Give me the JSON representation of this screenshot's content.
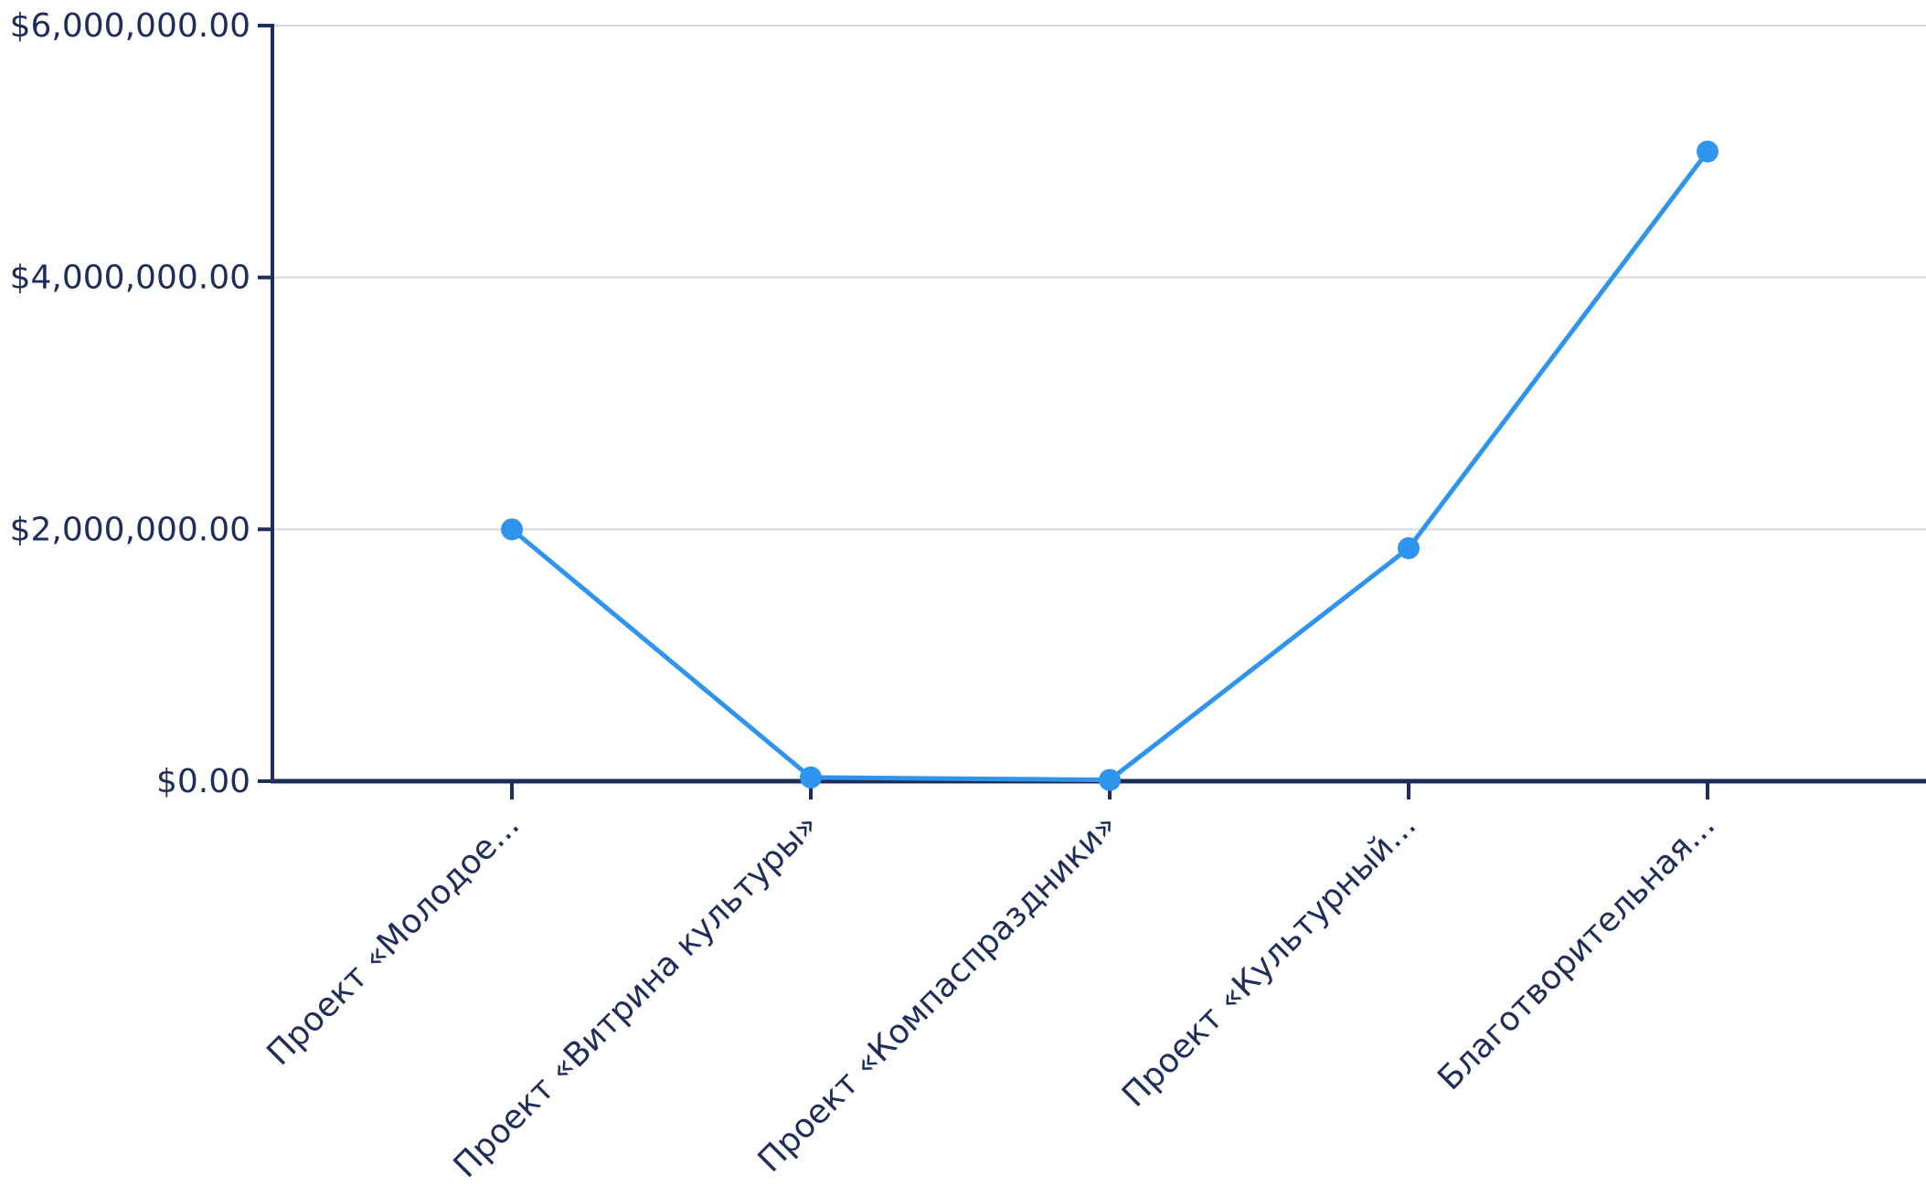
{
  "chart_data": {
    "type": "line",
    "title": "",
    "xlabel": "",
    "ylabel": "",
    "categories": [
      "Проект «Молодое...",
      "Проект «Витрина культуры»",
      "Проект «Компаспраздники»",
      "Проект «Культурный...",
      "Благотворительная..."
    ],
    "series": [
      {
        "values": [
          2000000,
          30000,
          10000,
          1850000,
          5000000
        ]
      }
    ],
    "y_ticks": [
      {
        "value": 0,
        "label": "$0.00"
      },
      {
        "value": 2000000,
        "label": "$2,000,000.00"
      },
      {
        "value": 4000000,
        "label": "$4,000,000.00"
      },
      {
        "value": 6000000,
        "label": "$6,000,000.00"
      }
    ],
    "ylim": [
      0,
      6000000
    ],
    "grid": true,
    "colors": {
      "line": "#2f94ee",
      "axis": "#1f2d5a",
      "grid": "#d4d6e2",
      "text": "#1f2d5a"
    }
  }
}
